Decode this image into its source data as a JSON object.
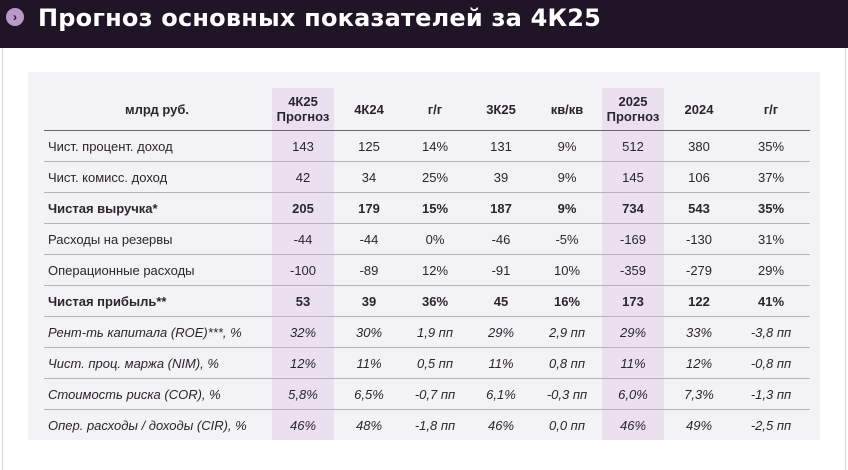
{
  "header": {
    "title": "Прогноз основных показателей за 4К25",
    "icon": "chevron-right-icon",
    "background": "#1f1526"
  },
  "table": {
    "columns": [
      "млрд руб.",
      "4К25 Прогноз",
      "4К24",
      "г/г",
      "3К25",
      "кв/кв",
      "2025 Прогноз",
      "2024",
      "г/г"
    ],
    "rows": [
      {
        "label": "Чист. процент. доход",
        "style": "normal",
        "values": [
          "143",
          "125",
          "14%",
          "131",
          "9%",
          "512",
          "380",
          "35%"
        ]
      },
      {
        "label": "Чист. комисс. доход",
        "style": "normal",
        "values": [
          "42",
          "34",
          "25%",
          "39",
          "9%",
          "145",
          "106",
          "37%"
        ]
      },
      {
        "label": "Чистая выручка*",
        "style": "bold",
        "values": [
          "205",
          "179",
          "15%",
          "187",
          "9%",
          "734",
          "543",
          "35%"
        ]
      },
      {
        "label": "Расходы на резервы",
        "style": "normal",
        "values": [
          "-44",
          "-44",
          "0%",
          "-46",
          "-5%",
          "-169",
          "-130",
          "31%"
        ]
      },
      {
        "label": "Операционные расходы",
        "style": "normal",
        "values": [
          "-100",
          "-89",
          "12%",
          "-91",
          "10%",
          "-359",
          "-279",
          "29%"
        ]
      },
      {
        "label": "Чистая прибыль**",
        "style": "bold",
        "values": [
          "53",
          "39",
          "36%",
          "45",
          "16%",
          "173",
          "122",
          "41%"
        ]
      },
      {
        "label": "Рент-ть капитала (ROE)***, %",
        "style": "italic",
        "values": [
          "32%",
          "30%",
          "1,9 пп",
          "29%",
          "2,9 пп",
          "29%",
          "33%",
          "-3,8 пп"
        ]
      },
      {
        "label": "Чист. проц. маржа (NIM), %",
        "style": "italic",
        "values": [
          "12%",
          "11%",
          "0,5 пп",
          "11%",
          "0,8 пп",
          "11%",
          "12%",
          "-0,8 пп"
        ]
      },
      {
        "label": "Стоимость риска (COR), %",
        "style": "italic",
        "values": [
          "5,8%",
          "6,5%",
          "-0,7 пп",
          "6,1%",
          "-0,3 пп",
          "6,0%",
          "7,3%",
          "-1,3 пп"
        ]
      },
      {
        "label": "Опер. расходы / доходы (CIR), %",
        "style": "italic",
        "values": [
          "46%",
          "48%",
          "-1,8 пп",
          "46%",
          "0,0 пп",
          "46%",
          "49%",
          "-2,5 пп"
        ]
      }
    ]
  },
  "colors": {
    "highlight": "#ebe0f0",
    "panel": "#f3f2f5"
  }
}
